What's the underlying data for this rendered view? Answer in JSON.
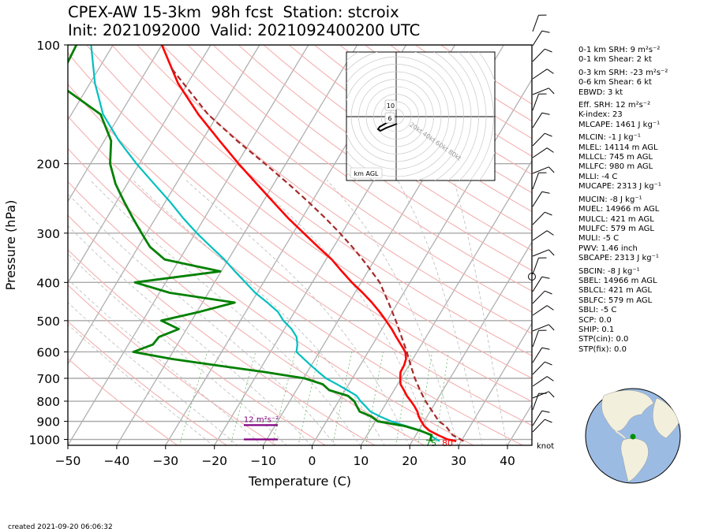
{
  "title": {
    "line1": "CPEX-AW 15-3km  98h fcst  Station: stcroix",
    "line2": "Init: 2021092000  Valid: 2021092400200 UTC"
  },
  "footer": {
    "created": "created 2021-09-20 06:06:32"
  },
  "indices": [
    "0-1 km SRH: 9 m²s⁻²",
    "0-1 km Shear: 2 kt",
    "",
    "0-3 km SRH: -23 m²s⁻²",
    "0-6 km Shear: 6 kt",
    "EBWD: 3 kt",
    "",
    "Eff. SRH: 12 m²s⁻²",
    "K-index: 23",
    "MLCAPE: 1461 J kg⁻¹",
    "",
    "MLCIN: -1 J kg⁻¹",
    "MLEL: 14114 m AGL",
    "MLLCL: 745 m AGL",
    "MLLFC: 980 m AGL",
    "MLLI: -4 C",
    "MUCAPE: 2313 J kg⁻¹",
    "",
    "MUCIN: -8 J kg⁻¹",
    "MUEL: 14966 m AGL",
    "MULCL: 421 m AGL",
    "MULFC: 579 m AGL",
    "MULI: -5 C",
    "PWV: 1.46 inch",
    "SBCAPE: 2313 J kg⁻¹",
    "",
    "SBCIN: -8 J kg⁻¹",
    "SBEL: 14966 m AGL",
    "SBLCL: 421 m AGL",
    "SBLFC: 579 m AGL",
    "SBLI: -5 C",
    "SCP: 0.0",
    "SHIP: 0.1",
    "STP(cin): 0.0",
    "STP(fix): 0.0"
  ],
  "chart_data": {
    "type": "line",
    "title": "CPEX-AW 15-3km  98h fcst  Station: stcroix",
    "xlabel": "Temperature (C)",
    "ylabel": "Pressure (hPa)",
    "xlim": [
      -50,
      45
    ],
    "ylim": [
      1035,
      100
    ],
    "y_scale": "log",
    "skew": true,
    "x_ticks": [
      "−50",
      "−40",
      "−30",
      "−20",
      "−10",
      "0",
      "10",
      "20",
      "30",
      "40"
    ],
    "y_ticks": [
      "100",
      "200",
      "300",
      "400",
      "500",
      "600",
      "700",
      "800",
      "900",
      "1000"
    ],
    "series": [
      {
        "name": "temperature",
        "color": "#ff0000",
        "points": [
          [
            29.0,
            1010
          ],
          [
            27.0,
            1000
          ],
          [
            24.5,
            975
          ],
          [
            22.2,
            950
          ],
          [
            20.6,
            925
          ],
          [
            19.4,
            900
          ],
          [
            18.3,
            875
          ],
          [
            17.4,
            850
          ],
          [
            16.2,
            825
          ],
          [
            14.8,
            800
          ],
          [
            13.3,
            775
          ],
          [
            12.0,
            750
          ],
          [
            10.6,
            725
          ],
          [
            9.8,
            700
          ],
          [
            9.1,
            675
          ],
          [
            9.0,
            650
          ],
          [
            8.6,
            625
          ],
          [
            7.6,
            600
          ],
          [
            5.8,
            575
          ],
          [
            3.9,
            550
          ],
          [
            2.0,
            525
          ],
          [
            -0.2,
            500
          ],
          [
            -2.6,
            475
          ],
          [
            -5.3,
            450
          ],
          [
            -8.4,
            425
          ],
          [
            -11.9,
            400
          ],
          [
            -15.3,
            375
          ],
          [
            -18.8,
            350
          ],
          [
            -23.2,
            325
          ],
          [
            -27.8,
            300
          ],
          [
            -32.8,
            275
          ],
          [
            -37.9,
            250
          ],
          [
            -43.5,
            225
          ],
          [
            -49.7,
            200
          ],
          [
            -56.4,
            175
          ],
          [
            -64.0,
            150
          ],
          [
            -72.0,
            125
          ],
          [
            -80.0,
            100
          ]
        ]
      },
      {
        "name": "dewpoint",
        "color": "#00bfbf",
        "points": [
          [
            25.6,
            1010
          ],
          [
            24.7,
            1000
          ],
          [
            22.9,
            975
          ],
          [
            20.5,
            950
          ],
          [
            16.9,
            925
          ],
          [
            13.3,
            900
          ],
          [
            10.4,
            875
          ],
          [
            7.8,
            850
          ],
          [
            6.2,
            825
          ],
          [
            4.5,
            800
          ],
          [
            3.0,
            775
          ],
          [
            0.4,
            750
          ],
          [
            -2.4,
            725
          ],
          [
            -5.4,
            700
          ],
          [
            -7.7,
            675
          ],
          [
            -10.0,
            650
          ],
          [
            -12.3,
            625
          ],
          [
            -14.7,
            600
          ],
          [
            -15.4,
            575
          ],
          [
            -16.5,
            550
          ],
          [
            -18.5,
            525
          ],
          [
            -21.2,
            500
          ],
          [
            -23.4,
            475
          ],
          [
            -26.7,
            450
          ],
          [
            -30.4,
            425
          ],
          [
            -33.7,
            400
          ],
          [
            -37.2,
            375
          ],
          [
            -40.8,
            350
          ],
          [
            -45.1,
            325
          ],
          [
            -49.7,
            300
          ],
          [
            -54.3,
            275
          ],
          [
            -59.0,
            250
          ],
          [
            -64.5,
            225
          ],
          [
            -70.6,
            200
          ],
          [
            -77.0,
            175
          ],
          [
            -83.5,
            150
          ],
          [
            -89.0,
            125
          ],
          [
            -94.5,
            100
          ]
        ]
      },
      {
        "name": "parcel",
        "color": "#a52a2a",
        "points": [
          [
            30.5,
            1010
          ],
          [
            27.5,
            975
          ],
          [
            25.0,
            925
          ],
          [
            23.0,
            900
          ],
          [
            20.5,
            850
          ],
          [
            17.8,
            800
          ],
          [
            15.3,
            750
          ],
          [
            12.8,
            700
          ],
          [
            10.4,
            650
          ],
          [
            7.9,
            600
          ],
          [
            5.0,
            550
          ],
          [
            1.8,
            500
          ],
          [
            -1.9,
            450
          ],
          [
            -6.2,
            400
          ],
          [
            -9.2,
            375
          ],
          [
            -12.5,
            350
          ],
          [
            -16.2,
            325
          ],
          [
            -20.4,
            300
          ],
          [
            -25.2,
            275
          ],
          [
            -30.7,
            250
          ],
          [
            -37.0,
            225
          ],
          [
            -44.3,
            200
          ],
          [
            -52.8,
            175
          ],
          [
            -62.0,
            150
          ],
          [
            -69.0,
            130
          ],
          [
            -75.0,
            115
          ]
        ]
      },
      {
        "name": "mixing ratio",
        "color": "#008000",
        "points": [
          [
            24.0,
            1010
          ],
          [
            23.5,
            1000
          ],
          [
            23.2,
            975
          ],
          [
            20.3,
            950
          ],
          [
            16.6,
            925
          ],
          [
            10.5,
            900
          ],
          [
            8.6,
            875
          ],
          [
            5.6,
            850
          ],
          [
            4.4,
            825
          ],
          [
            3.2,
            800
          ],
          [
            1.2,
            775
          ],
          [
            -3.3,
            750
          ],
          [
            -5.3,
            725
          ],
          [
            -9.8,
            700
          ],
          [
            -18.6,
            675
          ],
          [
            -29.0,
            650
          ],
          [
            -39.4,
            625
          ],
          [
            -48.1,
            600
          ],
          [
            -45.0,
            575
          ],
          [
            -44.7,
            550
          ],
          [
            -41.6,
            525
          ],
          [
            -46.2,
            500
          ],
          [
            -39.5,
            475
          ],
          [
            -33.4,
            450
          ],
          [
            -47.9,
            425
          ],
          [
            -56.3,
            400
          ],
          [
            -40.2,
            375
          ],
          [
            -53.0,
            350
          ],
          [
            -57.6,
            325
          ],
          [
            -61.0,
            300
          ],
          [
            -64.6,
            275
          ],
          [
            -68.4,
            250
          ],
          [
            -72.4,
            225
          ],
          [
            -76.0,
            200
          ],
          [
            -78.6,
            175
          ],
          [
            -84.0,
            150
          ],
          [
            -94.0,
            130
          ],
          [
            -97.0,
            115
          ],
          [
            -97.5,
            100
          ]
        ]
      }
    ],
    "surface_labels": {
      "dewpoint": "75",
      "temperature": "80"
    },
    "srh_bars": [
      {
        "label": "12 m²s⁻²",
        "pressure": 920
      },
      {
        "label": "",
        "pressure": 1000
      }
    ],
    "wind_unit": "knot",
    "hodograph": {
      "ring_labels": [
        "20kt",
        "40kt",
        "60kt",
        "80kt"
      ],
      "level_labels": [
        "10",
        "6"
      ],
      "axis_label": "km AGL"
    },
    "map_point": {
      "lon": -64.7,
      "lat": 17.7
    }
  }
}
